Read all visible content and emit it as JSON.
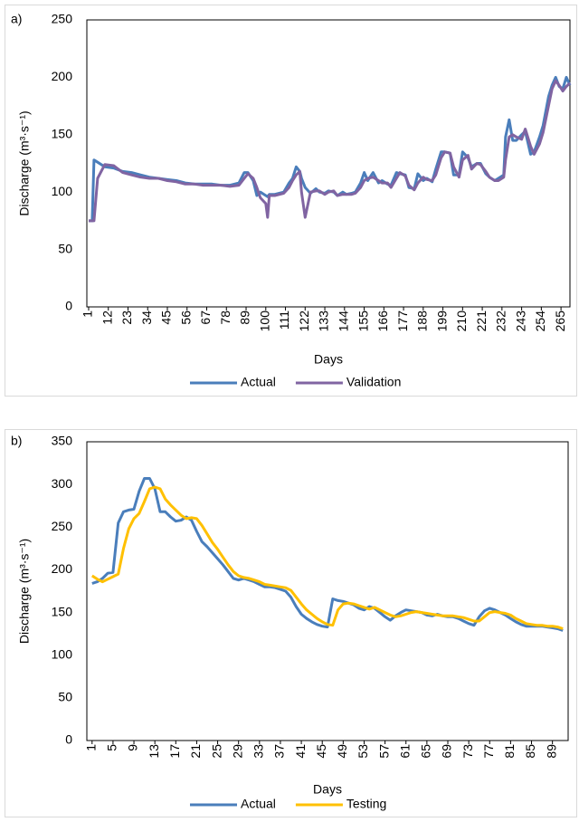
{
  "chart_data": [
    {
      "type": "line",
      "panel_label": "a)",
      "xlabel": "Days",
      "ylabel": "Discharge (m³·s⁻¹)",
      "x": [
        1,
        3,
        4,
        6,
        10,
        15,
        20,
        25,
        30,
        35,
        40,
        45,
        50,
        55,
        60,
        65,
        70,
        75,
        80,
        85,
        88,
        90,
        93,
        95,
        97,
        100,
        101,
        102,
        105,
        110,
        113,
        115,
        117,
        119,
        120,
        122,
        125,
        128,
        130,
        133,
        135,
        138,
        140,
        143,
        145,
        148,
        150,
        153,
        155,
        157,
        160,
        163,
        165,
        168,
        170,
        173,
        175,
        178,
        180,
        183,
        185,
        188,
        190,
        193,
        195,
        198,
        200,
        203,
        205,
        208,
        210,
        213,
        215,
        218,
        220,
        223,
        225,
        228,
        230,
        233,
        234,
        236,
        238,
        240,
        243,
        245,
        248,
        250,
        253,
        255,
        258,
        260,
        262,
        264,
        266,
        268,
        270
      ],
      "series": [
        {
          "name": "Actual",
          "color": "#4a7ebb",
          "values": [
            75,
            75,
            128,
            126,
            122,
            121,
            118,
            117,
            115,
            113,
            112,
            111,
            110,
            108,
            107,
            107,
            107,
            106,
            106,
            108,
            117,
            117,
            110,
            97,
            100,
            97,
            96,
            98,
            98,
            100,
            108,
            112,
            122,
            118,
            112,
            104,
            99,
            103,
            100,
            99,
            101,
            100,
            97,
            100,
            98,
            99,
            100,
            108,
            117,
            110,
            117,
            108,
            110,
            107,
            106,
            117,
            116,
            115,
            104,
            103,
            116,
            110,
            112,
            109,
            120,
            135,
            135,
            134,
            115,
            115,
            135,
            130,
            122,
            125,
            125,
            116,
            113,
            110,
            112,
            115,
            148,
            163,
            145,
            145,
            150,
            153,
            133,
            135,
            148,
            158,
            183,
            193,
            200,
            192,
            190,
            200,
            193
          ]
        },
        {
          "name": "Validation",
          "color": "#8064a2",
          "values": [
            75,
            75,
            75,
            112,
            124,
            123,
            117,
            115,
            113,
            112,
            112,
            110,
            109,
            107,
            107,
            106,
            106,
            106,
            105,
            106,
            112,
            116,
            112,
            104,
            95,
            90,
            78,
            97,
            97,
            99,
            104,
            110,
            115,
            118,
            100,
            78,
            100,
            101,
            101,
            98,
            100,
            101,
            97,
            98,
            98,
            98,
            99,
            104,
            110,
            112,
            113,
            110,
            108,
            108,
            104,
            112,
            117,
            114,
            106,
            102,
            108,
            113,
            111,
            110,
            115,
            130,
            135,
            134,
            122,
            113,
            128,
            132,
            120,
            125,
            124,
            118,
            113,
            110,
            110,
            113,
            128,
            148,
            150,
            148,
            146,
            155,
            140,
            133,
            142,
            152,
            175,
            190,
            197,
            193,
            188,
            192,
            195
          ]
        }
      ],
      "xlim": [
        0,
        270
      ],
      "xticks": [
        1,
        12,
        23,
        34,
        45,
        56,
        67,
        78,
        89,
        100,
        111,
        122,
        133,
        144,
        155,
        166,
        177,
        188,
        199,
        210,
        221,
        232,
        243,
        254,
        265
      ],
      "ylim": [
        0,
        250
      ],
      "yticks": [
        0,
        50,
        100,
        150,
        200,
        250
      ],
      "legend": "bottom"
    },
    {
      "type": "line",
      "panel_label": "b)",
      "xlabel": "Days",
      "ylabel": "Discharge (m³·s⁻¹)",
      "x": [
        1,
        2,
        3,
        4,
        5,
        6,
        7,
        8,
        9,
        10,
        11,
        12,
        13,
        14,
        15,
        16,
        17,
        18,
        19,
        20,
        21,
        22,
        23,
        24,
        25,
        26,
        27,
        28,
        29,
        30,
        31,
        32,
        33,
        34,
        35,
        36,
        37,
        38,
        39,
        40,
        41,
        42,
        43,
        44,
        45,
        46,
        47,
        48,
        49,
        50,
        51,
        52,
        53,
        54,
        55,
        56,
        57,
        58,
        59,
        60,
        61,
        62,
        63,
        64,
        65,
        66,
        67,
        68,
        69,
        70,
        71,
        72,
        73,
        74,
        75,
        76,
        77,
        78,
        79,
        80,
        81,
        82,
        83,
        84,
        85,
        86,
        87,
        88,
        89,
        90,
        91
      ],
      "series": [
        {
          "name": "Actual",
          "color": "#4a7ebb",
          "values": [
            184,
            186,
            190,
            196,
            197,
            255,
            268,
            270,
            271,
            292,
            307,
            307,
            295,
            268,
            268,
            262,
            257,
            258,
            262,
            258,
            245,
            233,
            227,
            220,
            213,
            206,
            198,
            190,
            188,
            190,
            188,
            186,
            183,
            180,
            180,
            179,
            177,
            175,
            168,
            157,
            148,
            143,
            139,
            136,
            134,
            133,
            166,
            164,
            163,
            161,
            159,
            155,
            153,
            157,
            155,
            150,
            145,
            141,
            146,
            150,
            153,
            152,
            151,
            150,
            147,
            146,
            148,
            146,
            145,
            145,
            143,
            140,
            137,
            135,
            145,
            152,
            155,
            153,
            150,
            147,
            143,
            139,
            136,
            134,
            134,
            134,
            134,
            133,
            132,
            131,
            129
          ]
        },
        {
          "name": "Testing",
          "color": "#ffc000",
          "values": [
            193,
            189,
            186,
            189,
            192,
            195,
            225,
            248,
            260,
            266,
            280,
            295,
            297,
            295,
            283,
            276,
            270,
            264,
            260,
            261,
            260,
            252,
            242,
            232,
            224,
            215,
            206,
            198,
            193,
            191,
            190,
            188,
            186,
            183,
            182,
            181,
            180,
            179,
            176,
            168,
            160,
            153,
            148,
            143,
            139,
            136,
            135,
            153,
            160,
            161,
            160,
            158,
            156,
            154,
            156,
            153,
            150,
            147,
            145,
            146,
            148,
            150,
            151,
            150,
            149,
            148,
            147,
            146,
            146,
            146,
            145,
            144,
            142,
            140,
            140,
            145,
            150,
            151,
            150,
            149,
            147,
            143,
            140,
            137,
            136,
            135,
            135,
            134,
            134,
            133,
            131
          ]
        }
      ],
      "xlim": [
        0,
        92
      ],
      "xticks": [
        1,
        5,
        9,
        13,
        17,
        21,
        25,
        29,
        33,
        37,
        41,
        45,
        49,
        53,
        57,
        61,
        65,
        69,
        73,
        77,
        81,
        85,
        89
      ],
      "ylim": [
        0,
        350
      ],
      "yticks": [
        0,
        50,
        100,
        150,
        200,
        250,
        300,
        350
      ],
      "legend": "bottom"
    }
  ]
}
